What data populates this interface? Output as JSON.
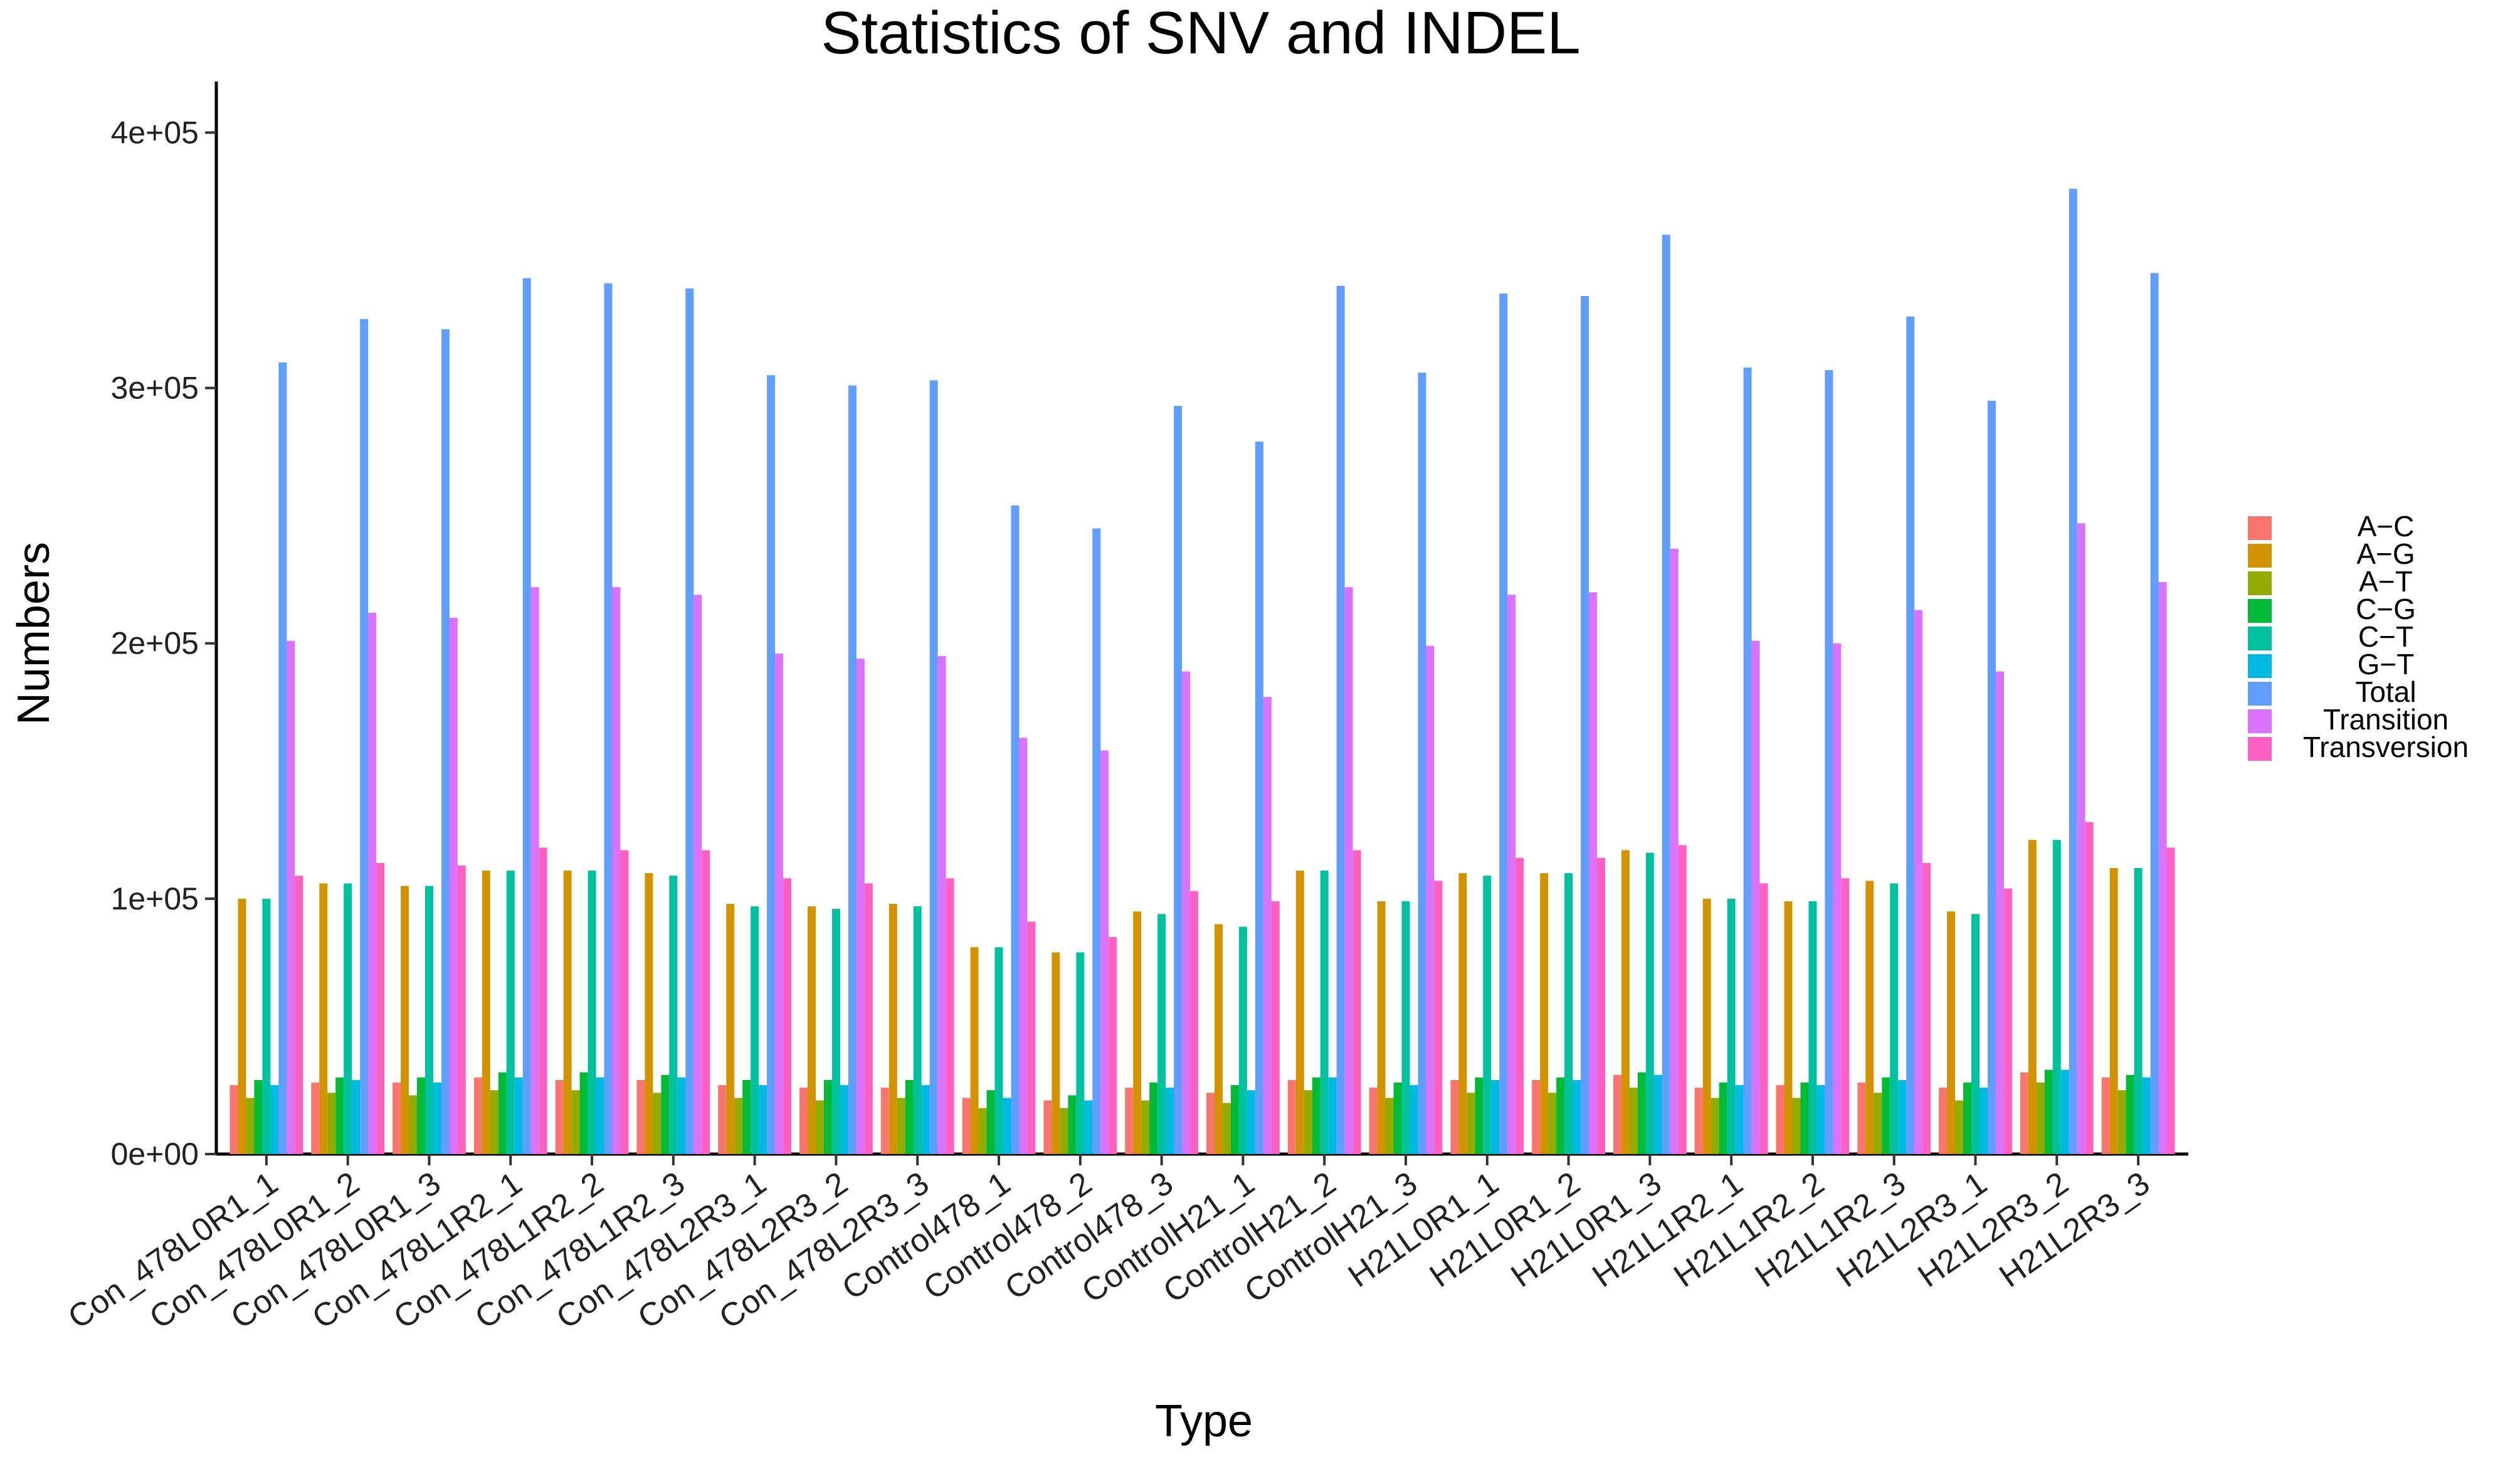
{
  "chart_data": {
    "type": "bar",
    "title": "Statistics of SNV and INDEL",
    "xlabel": "Type",
    "ylabel": "Numbers",
    "ylim": [
      0,
      420000
    ],
    "yticks": [
      {
        "value": 0,
        "label": "0e+00"
      },
      {
        "value": 100000,
        "label": "1e+05"
      },
      {
        "value": 200000,
        "label": "2e+05"
      },
      {
        "value": 300000,
        "label": "3e+05"
      },
      {
        "value": 400000,
        "label": "4e+05"
      }
    ],
    "grid": false,
    "legend_position": "right",
    "categories": [
      "Con_478L0R1_1",
      "Con_478L0R1_2",
      "Con_478L0R1_3",
      "Con_478L1R2_1",
      "Con_478L1R2_2",
      "Con_478L1R2_3",
      "Con_478L2R3_1",
      "Con_478L2R3_2",
      "Con_478L2R3_3",
      "Control478_1",
      "Control478_2",
      "Control478_3",
      "ControlH21_1",
      "ControlH21_2",
      "ControlH21_3",
      "H21L0R1_1",
      "H21L0R1_2",
      "H21L0R1_3",
      "H21L1R2_1",
      "H21L1R2_2",
      "H21L1R2_3",
      "H21L2R3_1",
      "H21L2R3_2",
      "H21L2R3_3"
    ],
    "series": [
      {
        "name": "A−C",
        "color": "#F8766D",
        "values": [
          27000,
          28000,
          28000,
          30000,
          29000,
          29000,
          27000,
          26000,
          26000,
          22000,
          21000,
          26000,
          24000,
          29000,
          26000,
          29000,
          29000,
          31000,
          26000,
          27000,
          28000,
          26000,
          32000,
          30000
        ]
      },
      {
        "name": "A−G",
        "color": "#D39200",
        "values": [
          100000,
          106000,
          105000,
          111000,
          111000,
          110000,
          98000,
          97000,
          98000,
          81000,
          79000,
          95000,
          90000,
          111000,
          99000,
          110000,
          110000,
          119000,
          100000,
          99000,
          107000,
          95000,
          123000,
          112000
        ]
      },
      {
        "name": "A−T",
        "color": "#93AA00",
        "values": [
          22000,
          24000,
          23000,
          25000,
          25000,
          24000,
          22000,
          21000,
          22000,
          18000,
          18000,
          21000,
          20000,
          25000,
          22000,
          24000,
          24000,
          26000,
          22000,
          22000,
          24000,
          21000,
          28000,
          25000
        ]
      },
      {
        "name": "C−G",
        "color": "#00BA38",
        "values": [
          29000,
          30000,
          30000,
          32000,
          32000,
          31000,
          29000,
          29000,
          29000,
          25000,
          23000,
          28000,
          27000,
          30000,
          28000,
          30000,
          30000,
          32000,
          28000,
          28000,
          30000,
          28000,
          33000,
          31000
        ]
      },
      {
        "name": "C−T",
        "color": "#00C19F",
        "values": [
          100000,
          106000,
          105000,
          111000,
          111000,
          109000,
          97000,
          96000,
          97000,
          81000,
          79000,
          94000,
          89000,
          111000,
          99000,
          109000,
          110000,
          118000,
          100000,
          99000,
          106000,
          94000,
          123000,
          112000
        ]
      },
      {
        "name": "G−T",
        "color": "#00B9E3",
        "values": [
          27000,
          29000,
          28000,
          30000,
          30000,
          30000,
          27000,
          27000,
          27000,
          22000,
          21000,
          26000,
          25000,
          30000,
          27000,
          29000,
          29000,
          31000,
          27000,
          27000,
          29000,
          26000,
          33000,
          30000
        ]
      },
      {
        "name": "Total",
        "color": "#619CFF",
        "values": [
          310000,
          327000,
          323000,
          343000,
          341000,
          339000,
          305000,
          301000,
          303000,
          254000,
          245000,
          293000,
          279000,
          340000,
          306000,
          337000,
          336000,
          360000,
          308000,
          307000,
          328000,
          295000,
          378000,
          345000
        ]
      },
      {
        "name": "Transition",
        "color": "#DB72FB",
        "values": [
          201000,
          212000,
          210000,
          222000,
          222000,
          219000,
          196000,
          194000,
          195000,
          163000,
          158000,
          189000,
          179000,
          222000,
          199000,
          219000,
          220000,
          237000,
          201000,
          200000,
          213000,
          189000,
          247000,
          224000
        ]
      },
      {
        "name": "Transversion",
        "color": "#FF61C3",
        "values": [
          109000,
          114000,
          113000,
          120000,
          119000,
          119000,
          108000,
          106000,
          108000,
          91000,
          85000,
          103000,
          99000,
          119000,
          107000,
          116000,
          116000,
          121000,
          106000,
          108000,
          114000,
          104000,
          130000,
          120000
        ]
      }
    ]
  }
}
